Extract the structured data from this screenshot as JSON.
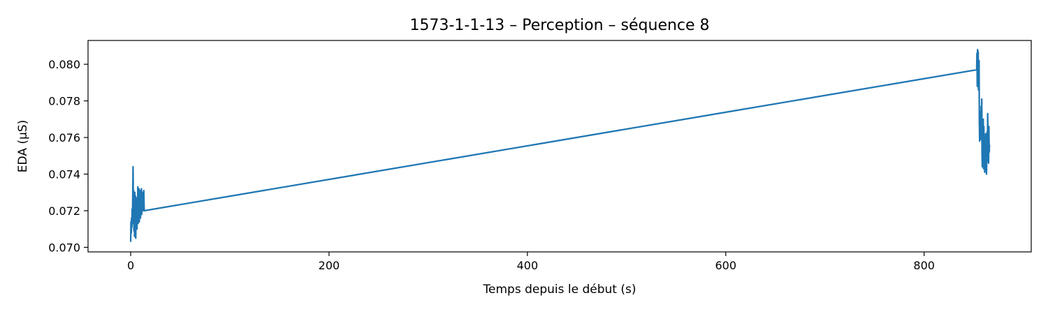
{
  "chart_data": {
    "type": "line",
    "title": "1573-1-1-13 – Perception – séquence 8",
    "xlabel": "Temps depuis le début (s)",
    "ylabel": "EDA (µS)",
    "xlim": [
      -43,
      908
    ],
    "ylim": [
      0.06975,
      0.0813
    ],
    "xticks": [
      0,
      200,
      400,
      600,
      800
    ],
    "yticks": [
      0.07,
      0.072,
      0.074,
      0.076,
      0.078,
      0.08
    ],
    "xtick_labels": [
      "0",
      "200",
      "400",
      "600",
      "800"
    ],
    "ytick_labels": [
      "0.070",
      "0.072",
      "0.074",
      "0.076",
      "0.078",
      "0.080"
    ],
    "grid": false,
    "series": [
      {
        "color": "#1f77b4",
        "x": [
          0,
          0.3,
          0.6,
          0.9,
          1.2,
          1.5,
          1.8,
          2.1,
          2.4,
          2.7,
          3.0,
          3.3,
          3.6,
          3.9,
          4.2,
          4.5,
          4.8,
          5.1,
          5.4,
          5.7,
          6.0,
          6.3,
          6.6,
          6.9,
          7.2,
          7.5,
          7.8,
          8.1,
          8.4,
          8.7,
          9.0,
          9.3,
          9.6,
          9.9,
          10.2,
          10.5,
          10.8,
          11.1,
          11.4,
          11.7,
          12.0,
          12.3,
          12.6,
          12.9,
          13.2,
          13.6,
          853,
          853.3,
          853.6,
          853.9,
          854.2,
          854.5,
          854.8,
          855.1,
          855.4,
          855.7,
          856.0,
          856.3,
          856.6,
          856.9,
          857.2,
          857.5,
          857.8,
          858.1,
          858.4,
          858.7,
          859.0,
          859.3,
          859.6,
          859.9,
          860.2,
          860.5,
          860.8,
          861.1,
          861.4,
          861.7,
          862.0,
          862.3,
          862.6,
          862.9,
          863.2,
          863.5,
          863.8,
          864.1,
          864.4,
          864.7,
          865.0,
          865.3,
          865.6,
          865.9
        ],
        "y": [
          0.0703,
          0.0714,
          0.0708,
          0.0716,
          0.0711,
          0.0721,
          0.0713,
          0.0728,
          0.0744,
          0.0717,
          0.0731,
          0.0709,
          0.0726,
          0.0706,
          0.073,
          0.0715,
          0.0728,
          0.0705,
          0.0722,
          0.0716,
          0.0727,
          0.071,
          0.0724,
          0.0718,
          0.0733,
          0.0713,
          0.0729,
          0.0719,
          0.0732,
          0.0714,
          0.0728,
          0.072,
          0.0731,
          0.0716,
          0.0727,
          0.0721,
          0.0732,
          0.0718,
          0.0726,
          0.0722,
          0.073,
          0.072,
          0.0729,
          0.0723,
          0.0731,
          0.072,
          0.0797,
          0.0806,
          0.0788,
          0.0808,
          0.0792,
          0.0807,
          0.0786,
          0.0795,
          0.0802,
          0.0769,
          0.0758,
          0.0771,
          0.0761,
          0.0774,
          0.0759,
          0.0777,
          0.0764,
          0.0781,
          0.0751,
          0.0744,
          0.0762,
          0.0748,
          0.077,
          0.0743,
          0.0766,
          0.0751,
          0.076,
          0.0741,
          0.0756,
          0.0745,
          0.0762,
          0.0742,
          0.0758,
          0.074,
          0.0752,
          0.0763,
          0.0747,
          0.0773,
          0.0758,
          0.0761,
          0.0746,
          0.0766,
          0.0752,
          0.0756
        ]
      }
    ]
  }
}
